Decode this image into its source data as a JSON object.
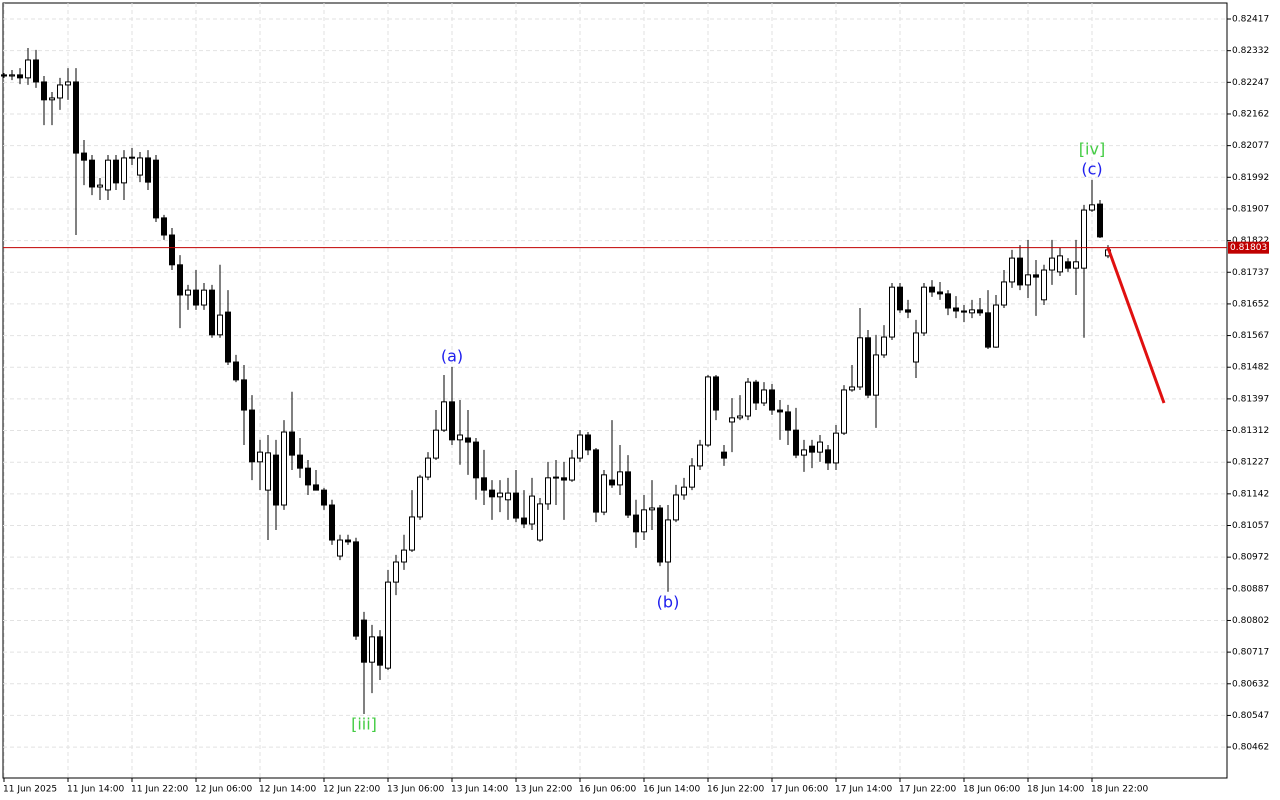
{
  "chart_data": {
    "type": "candlestick",
    "categories": [
      "11 Jun 2025",
      null,
      null,
      null,
      null,
      null,
      null,
      null,
      "11 Jun 14:00",
      null,
      null,
      null,
      null,
      null,
      null,
      null,
      "11 Jun 22:00",
      null,
      null,
      null,
      null,
      null,
      null,
      null,
      "12 Jun 06:00",
      null,
      null,
      null,
      null,
      null,
      null,
      null,
      "12 Jun 14:00",
      null,
      null,
      null,
      null,
      null,
      null,
      null,
      "12 Jun 22:00",
      null,
      null,
      null,
      null,
      null,
      null,
      null,
      "13 Jun 06:00",
      null,
      null,
      null,
      null,
      null,
      null,
      null,
      "13 Jun 14:00",
      null,
      null,
      null,
      null,
      null,
      null,
      null,
      "13 Jun 22:00",
      null,
      null,
      null,
      null,
      null,
      null,
      null,
      "16 Jun 06:00",
      null,
      null,
      null,
      null,
      null,
      null,
      null,
      "16 Jun 14:00",
      null,
      null,
      null,
      null,
      null,
      null,
      null,
      "16 Jun 22:00",
      null,
      null,
      null,
      null,
      null,
      null,
      null,
      "17 Jun 06:00",
      null,
      null,
      null,
      null,
      null,
      null,
      null,
      "17 Jun 14:00",
      null,
      null,
      null,
      null,
      null,
      null,
      null,
      "17 Jun 22:00",
      null,
      null,
      null,
      null,
      null,
      null,
      null,
      "18 Jun 06:00",
      null,
      null,
      null,
      null,
      null,
      null,
      null,
      "18 Jun 14:00",
      null,
      null,
      null,
      null,
      null,
      null,
      null,
      "18 Jun 22:00",
      null,
      null
    ],
    "open": [
      0.82267,
      0.82264,
      0.82267,
      0.82259,
      0.82307,
      0.82248,
      0.822,
      0.82205,
      0.8224,
      0.82248,
      0.82057,
      0.82038,
      0.81966,
      0.81958,
      0.82038,
      0.81977,
      0.82044,
      0.81998,
      0.82044,
      0.82038,
      0.81883,
      0.81837,
      0.81757,
      0.81676,
      0.81689,
      0.81649,
      0.81689,
      0.81569,
      0.8163,
      0.81496,
      0.81448,
      0.81367,
      0.81228,
      0.81152,
      0.81246,
      0.81112,
      0.81308,
      0.81246,
      0.81211,
      0.81166,
      0.81152,
      0.81112,
      0.80975,
      0.81018,
      0.81013,
      0.80803,
      0.8069,
      0.80758,
      0.80674,
      0.80905,
      0.80959,
      0.80991,
      0.8108,
      0.81187,
      0.81238,
      0.81313,
      0.81389,
      0.81287,
      0.81292,
      0.81281,
      0.81185,
      0.81152,
      0.81134,
      0.81126,
      0.81144,
      0.81077,
      0.81061,
      0.81018,
      0.81115,
      0.81185,
      0.81185,
      0.81179,
      0.81238,
      0.813,
      0.8126,
      0.81093,
      0.81179,
      0.81166,
      0.81201,
      0.81085,
      0.8104,
      0.81099,
      0.81104,
      0.80959,
      0.81072,
      0.81139,
      0.8116,
      0.81217,
      0.81273,
      0.81456,
      0.81254,
      0.81335,
      0.81346,
      0.81351,
      0.81442,
      0.81386,
      0.81421,
      0.81367,
      0.81362,
      0.81313,
      0.81246,
      0.8127,
      0.81254,
      0.8126,
      0.81225,
      0.81305,
      0.81421,
      0.81429,
      0.81561,
      0.81407,
      0.81515,
      0.81563,
      0.81697,
      0.81636,
      0.81496,
      0.81574,
      0.81697,
      0.81684,
      0.81679,
      0.81641,
      0.81633,
      0.81628,
      0.81636,
      0.81628,
      0.81536,
      0.81649,
      0.81711,
      0.81775,
      0.81703,
      0.8173,
      0.81663,
      0.81743,
      0.81738,
      0.81765,
      0.81748,
      0.81748,
      0.81904,
      0.8192,
      0.81781
    ],
    "high": [
      0.82272,
      0.8228,
      0.82285,
      0.82339,
      0.82334,
      0.82264,
      0.82221,
      0.82259,
      0.82285,
      0.82285,
      0.82092,
      0.82052,
      0.8199,
      0.82052,
      0.82052,
      0.82065,
      0.82071,
      0.8206,
      0.82065,
      0.82052,
      0.81891,
      0.81856,
      0.81783,
      0.81703,
      0.81743,
      0.81708,
      0.81703,
      0.81757,
      0.81689,
      0.81515,
      0.81488,
      0.81407,
      0.81287,
      0.813,
      0.81287,
      0.8134,
      0.81416,
      0.81292,
      0.81233,
      0.81206,
      0.81158,
      0.81126,
      0.81032,
      0.81032,
      0.81024,
      0.80825,
      0.8079,
      0.80776,
      0.80938,
      0.80978,
      0.81032,
      0.81152,
      0.81193,
      0.81254,
      0.81367,
      0.81461,
      0.81483,
      0.81394,
      0.81367,
      0.81292,
      0.8126,
      0.81179,
      0.81179,
      0.81185,
      0.81206,
      0.81152,
      0.81185,
      0.81131,
      0.81228,
      0.81233,
      0.81228,
      0.8126,
      0.81313,
      0.81308,
      0.81265,
      0.81206,
      0.8134,
      0.81273,
      0.81246,
      0.81126,
      0.81139,
      0.81179,
      0.81112,
      0.81112,
      0.81166,
      0.81185,
      0.81238,
      0.81287,
      0.81461,
      0.81461,
      0.81273,
      0.81399,
      0.81407,
      0.81453,
      0.81448,
      0.81442,
      0.81437,
      0.81394,
      0.81381,
      0.81373,
      0.81287,
      0.81287,
      0.813,
      0.81273,
      0.81327,
      0.81434,
      0.81488,
      0.81641,
      0.81582,
      0.81569,
      0.81595,
      0.81708,
      0.81708,
      0.81663,
      0.81609,
      0.81708,
      0.81716,
      0.81711,
      0.81689,
      0.81673,
      0.81649,
      0.81663,
      0.81668,
      0.81689,
      0.81676,
      0.81743,
      0.81797,
      0.8181,
      0.81824,
      0.8177,
      0.81757,
      0.81824,
      0.81802,
      0.81775,
      0.81824,
      0.81918,
      0.81985,
      0.81931,
      0.8181
    ],
    "low": [
      0.82259,
      0.82253,
      0.82242,
      0.8224,
      0.82232,
      0.82132,
      0.82132,
      0.82173,
      0.822,
      0.81837,
      0.81971,
      0.81944,
      0.81931,
      0.81931,
      0.81958,
      0.81931,
      0.82025,
      0.81979,
      0.81958,
      0.81872,
      0.81824,
      0.81743,
      0.81587,
      0.81636,
      0.81636,
      0.81636,
      0.81561,
      0.81561,
      0.81488,
      0.81442,
      0.81273,
      0.81179,
      0.81152,
      0.81018,
      0.81045,
      0.81099,
      0.81206,
      0.81185,
      0.81139,
      0.81152,
      0.81099,
      0.81005,
      0.80964,
      0.81005,
      0.8075,
      0.80551,
      0.80607,
      0.80642,
      0.80669,
      0.8087,
      0.80938,
      0.80986,
      0.81072,
      0.81179,
      0.81233,
      0.81308,
      0.81273,
      0.8122,
      0.81193,
      0.81126,
      0.81112,
      0.81072,
      0.81093,
      0.81072,
      0.81066,
      0.8105,
      0.81045,
      0.81013,
      0.81099,
      0.81112,
      0.81072,
      0.81174,
      0.81228,
      0.81246,
      0.81066,
      0.81085,
      0.81158,
      0.81139,
      0.81077,
      0.80997,
      0.81018,
      0.81045,
      0.80948,
      0.80879,
      0.81066,
      0.81126,
      0.81152,
      0.81206,
      0.81268,
      0.8134,
      0.81217,
      0.81254,
      0.8134,
      0.8134,
      0.81367,
      0.81378,
      0.81354,
      0.81287,
      0.81273,
      0.81238,
      0.81201,
      0.81211,
      0.81228,
      0.81206,
      0.81206,
      0.813,
      0.81416,
      0.81421,
      0.81399,
      0.81319,
      0.81507,
      0.81555,
      0.81628,
      0.81614,
      0.81453,
      0.81566,
      0.81671,
      0.81663,
      0.81622,
      0.81614,
      0.81603,
      0.81614,
      0.8162,
      0.81531,
      0.81534,
      0.81641,
      0.81695,
      0.81689,
      0.81668,
      0.8162,
      0.81649,
      0.81703,
      0.81727,
      0.81738,
      0.81676,
      0.81561,
      0.81899,
      0.81829,
      0.81775
    ],
    "close": [
      0.82264,
      0.82267,
      0.82259,
      0.82307,
      0.82248,
      0.822,
      0.82205,
      0.8224,
      0.82248,
      0.82057,
      0.82038,
      0.81966,
      0.81971,
      0.82038,
      0.81977,
      0.82044,
      0.82046,
      0.82044,
      0.81979,
      0.81883,
      0.81837,
      0.81757,
      0.81676,
      0.81689,
      0.81649,
      0.81689,
      0.81569,
      0.81622,
      0.81496,
      0.81448,
      0.81367,
      0.81228,
      0.81254,
      0.81252,
      0.81112,
      0.81308,
      0.81246,
      0.81211,
      0.81166,
      0.81152,
      0.81112,
      0.81018,
      0.81018,
      0.81013,
      0.8076,
      0.8069,
      0.80758,
      0.80682,
      0.80905,
      0.80959,
      0.80991,
      0.8108,
      0.81187,
      0.81238,
      0.81313,
      0.81389,
      0.81287,
      0.813,
      0.81281,
      0.81185,
      0.81152,
      0.81134,
      0.81144,
      0.81144,
      0.81077,
      0.81061,
      0.81136,
      0.81115,
      0.81185,
      0.81187,
      0.81179,
      0.81238,
      0.813,
      0.8126,
      0.81093,
      0.81193,
      0.81166,
      0.81201,
      0.81085,
      0.8104,
      0.81099,
      0.81104,
      0.80959,
      0.81072,
      0.81139,
      0.8116,
      0.81217,
      0.81273,
      0.81456,
      0.81367,
      0.81238,
      0.81346,
      0.81351,
      0.81442,
      0.81386,
      0.81421,
      0.81367,
      0.81362,
      0.81313,
      0.81246,
      0.8126,
      0.81254,
      0.81281,
      0.81225,
      0.81305,
      0.81421,
      0.81429,
      0.81561,
      0.81407,
      0.81515,
      0.81563,
      0.81697,
      0.81636,
      0.8163,
      0.81574,
      0.81697,
      0.81684,
      0.81679,
      0.81641,
      0.81633,
      0.8163,
      0.81636,
      0.81628,
      0.81536,
      0.81649,
      0.81711,
      0.81775,
      0.81703,
      0.8173,
      0.81724,
      0.81743,
      0.81775,
      0.81781,
      0.81748,
      0.81765,
      0.81904,
      0.81918,
      0.81832,
      0.81797
    ],
    "up_color": "#ffffff",
    "down_color": "#000000",
    "ylim": [
      0.80379,
      0.8246
    ],
    "yticks": [
      0.82417,
      0.82332,
      0.82247,
      0.82162,
      0.82077,
      0.81992,
      0.81907,
      0.81822,
      0.81737,
      0.81652,
      0.81567,
      0.81482,
      0.81397,
      0.81312,
      0.81227,
      0.81142,
      0.81057,
      0.80972,
      0.80887,
      0.80802,
      0.80717,
      0.80632,
      0.80547,
      0.80462
    ],
    "grid": true,
    "current_price": 0.81803,
    "current_price_color": "#c00000",
    "forecast": {
      "color": "#e01010",
      "x": [
        138,
        145
      ],
      "values": [
        0.81803,
        0.81386
      ]
    },
    "annotations": [
      {
        "text": "[iii]",
        "candle": 45,
        "side": "below",
        "color": "#44cc44"
      },
      {
        "text": "(a)",
        "candle": 56,
        "side": "above",
        "color": "#2020ee"
      },
      {
        "text": "(b)",
        "candle": 83,
        "side": "below",
        "color": "#2020ee"
      },
      {
        "text": "(c)",
        "candle": 136,
        "side": "above",
        "color": "#2020ee"
      },
      {
        "text": "[iv]",
        "candle": 136,
        "side": "above",
        "color": "#44cc44"
      }
    ]
  }
}
